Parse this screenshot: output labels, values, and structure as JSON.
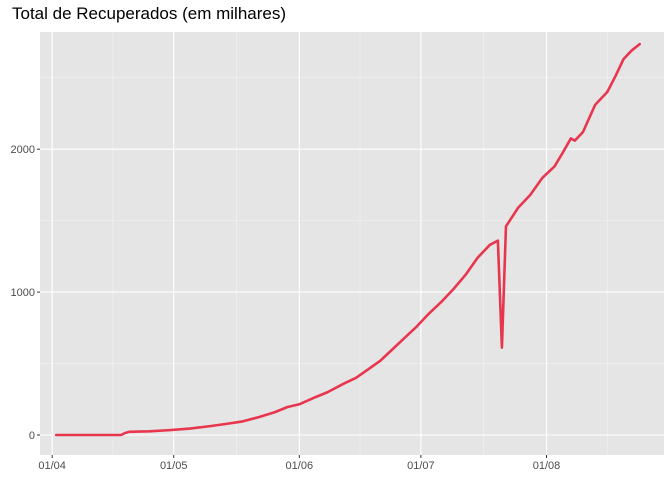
{
  "chart_data": {
    "type": "line",
    "title": "Total de Recuperados (em milhares)",
    "xlabel": "",
    "ylabel": "",
    "x_tick_labels": [
      "01/04",
      "01/05",
      "01/06",
      "01/07",
      "01/08"
    ],
    "x_tick_dates": [
      "2020-04-01",
      "2020-05-01",
      "2020-06-01",
      "2020-07-01",
      "2020-08-01"
    ],
    "y_ticks": [
      0,
      1000,
      2000
    ],
    "ylim": [
      -140,
      2820
    ],
    "xlim": [
      "2020-03-29",
      "2020-08-30"
    ],
    "grid": true,
    "line_color": "#e8364f",
    "panel_background": "#e5e5e5",
    "series": [
      {
        "points": [
          [
            "2020-04-02",
            0
          ],
          [
            "2020-04-18",
            0
          ],
          [
            "2020-04-19",
            14
          ],
          [
            "2020-04-20",
            22
          ],
          [
            "2020-04-25",
            26
          ],
          [
            "2020-04-30",
            34
          ],
          [
            "2020-05-05",
            45
          ],
          [
            "2020-05-10",
            62
          ],
          [
            "2020-05-14",
            78
          ],
          [
            "2020-05-18",
            95
          ],
          [
            "2020-05-22",
            125
          ],
          [
            "2020-05-26",
            160
          ],
          [
            "2020-05-29",
            195
          ],
          [
            "2020-06-01",
            215
          ],
          [
            "2020-06-05",
            265
          ],
          [
            "2020-06-08",
            300
          ],
          [
            "2020-06-12",
            360
          ],
          [
            "2020-06-15",
            400
          ],
          [
            "2020-06-18",
            460
          ],
          [
            "2020-06-21",
            520
          ],
          [
            "2020-06-24",
            600
          ],
          [
            "2020-06-27",
            680
          ],
          [
            "2020-06-30",
            760
          ],
          [
            "2020-07-03",
            850
          ],
          [
            "2020-07-06",
            930
          ],
          [
            "2020-07-09",
            1020
          ],
          [
            "2020-07-12",
            1120
          ],
          [
            "2020-07-15",
            1240
          ],
          [
            "2020-07-18",
            1330
          ],
          [
            "2020-07-20",
            1360
          ],
          [
            "2020-07-21",
            612
          ],
          [
            "2020-07-22",
            1460
          ],
          [
            "2020-07-25",
            1590
          ],
          [
            "2020-07-28",
            1680
          ],
          [
            "2020-07-31",
            1800
          ],
          [
            "2020-08-03",
            1880
          ],
          [
            "2020-08-05",
            1975
          ],
          [
            "2020-08-07",
            2075
          ],
          [
            "2020-08-08",
            2060
          ],
          [
            "2020-08-10",
            2120
          ],
          [
            "2020-08-13",
            2310
          ],
          [
            "2020-08-16",
            2400
          ],
          [
            "2020-08-18",
            2510
          ],
          [
            "2020-08-20",
            2630
          ],
          [
            "2020-08-22",
            2690
          ],
          [
            "2020-08-24",
            2735
          ]
        ]
      }
    ]
  }
}
